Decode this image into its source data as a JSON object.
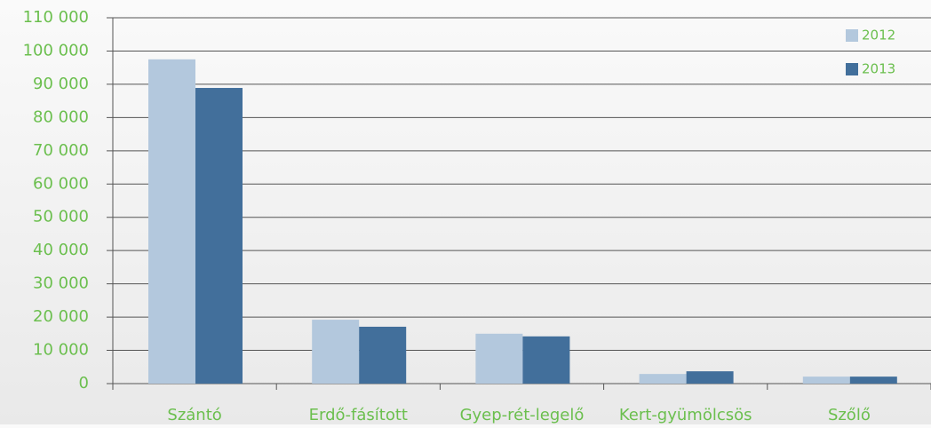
{
  "chart_data": {
    "type": "bar",
    "categories": [
      "Szántó",
      "Erdő-fásított",
      "Gyep-rét-legelő",
      "Kert-gyümölcsös",
      "Szőlő"
    ],
    "series": [
      {
        "name": "2012",
        "color": "#b3c8dd",
        "values": [
          97500,
          19200,
          15000,
          2900,
          2100
        ]
      },
      {
        "name": "2013",
        "color": "#426f9b",
        "values": [
          88900,
          17100,
          14200,
          3700,
          2100
        ]
      }
    ],
    "ylim": [
      0,
      110000
    ],
    "yticks": [
      {
        "value": 0,
        "label": "0"
      },
      {
        "value": 10000,
        "label": "10 000"
      },
      {
        "value": 20000,
        "label": "20 000"
      },
      {
        "value": 30000,
        "label": "30 000"
      },
      {
        "value": 40000,
        "label": "40 000"
      },
      {
        "value": 50000,
        "label": "50 000"
      },
      {
        "value": 60000,
        "label": "60 000"
      },
      {
        "value": 70000,
        "label": "70 000"
      },
      {
        "value": 80000,
        "label": "80 000"
      },
      {
        "value": 90000,
        "label": "90 000"
      },
      {
        "value": 100000,
        "label": "100 000"
      },
      {
        "value": 110000,
        "label": "110 000"
      }
    ],
    "grid": true,
    "legend": "top-right"
  }
}
